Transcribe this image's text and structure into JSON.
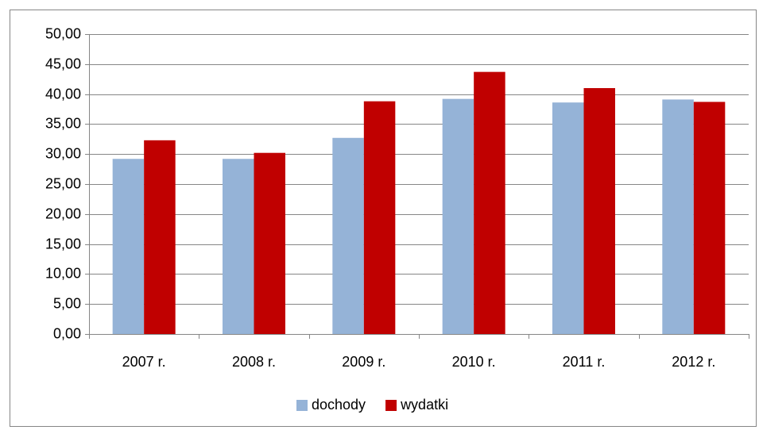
{
  "chart_data": {
    "type": "bar",
    "categories": [
      "2007 r.",
      "2008 r.",
      "2009 r.",
      "2010 r.",
      "2011 r.",
      "2012 r."
    ],
    "series": [
      {
        "name": "dochody",
        "color": "#95b3d7",
        "values": [
          29.2,
          29.2,
          32.7,
          39.2,
          38.6,
          39.1
        ]
      },
      {
        "name": "wydatki",
        "color": "#c00000",
        "values": [
          32.3,
          30.2,
          38.8,
          43.7,
          41.0,
          38.7
        ]
      }
    ],
    "ylim": [
      0,
      50
    ],
    "yticks": [
      {
        "value": 0,
        "label": "0,00"
      },
      {
        "value": 5,
        "label": "5,00"
      },
      {
        "value": 10,
        "label": "10,00"
      },
      {
        "value": 15,
        "label": "15,00"
      },
      {
        "value": 20,
        "label": "20,00"
      },
      {
        "value": 25,
        "label": "25,00"
      },
      {
        "value": 30,
        "label": "30,00"
      },
      {
        "value": 35,
        "label": "35,00"
      },
      {
        "value": 40,
        "label": "40,00"
      },
      {
        "value": 45,
        "label": "45,00"
      },
      {
        "value": 50,
        "label": "50,00"
      }
    ],
    "grid": true,
    "legend": "bottom"
  }
}
